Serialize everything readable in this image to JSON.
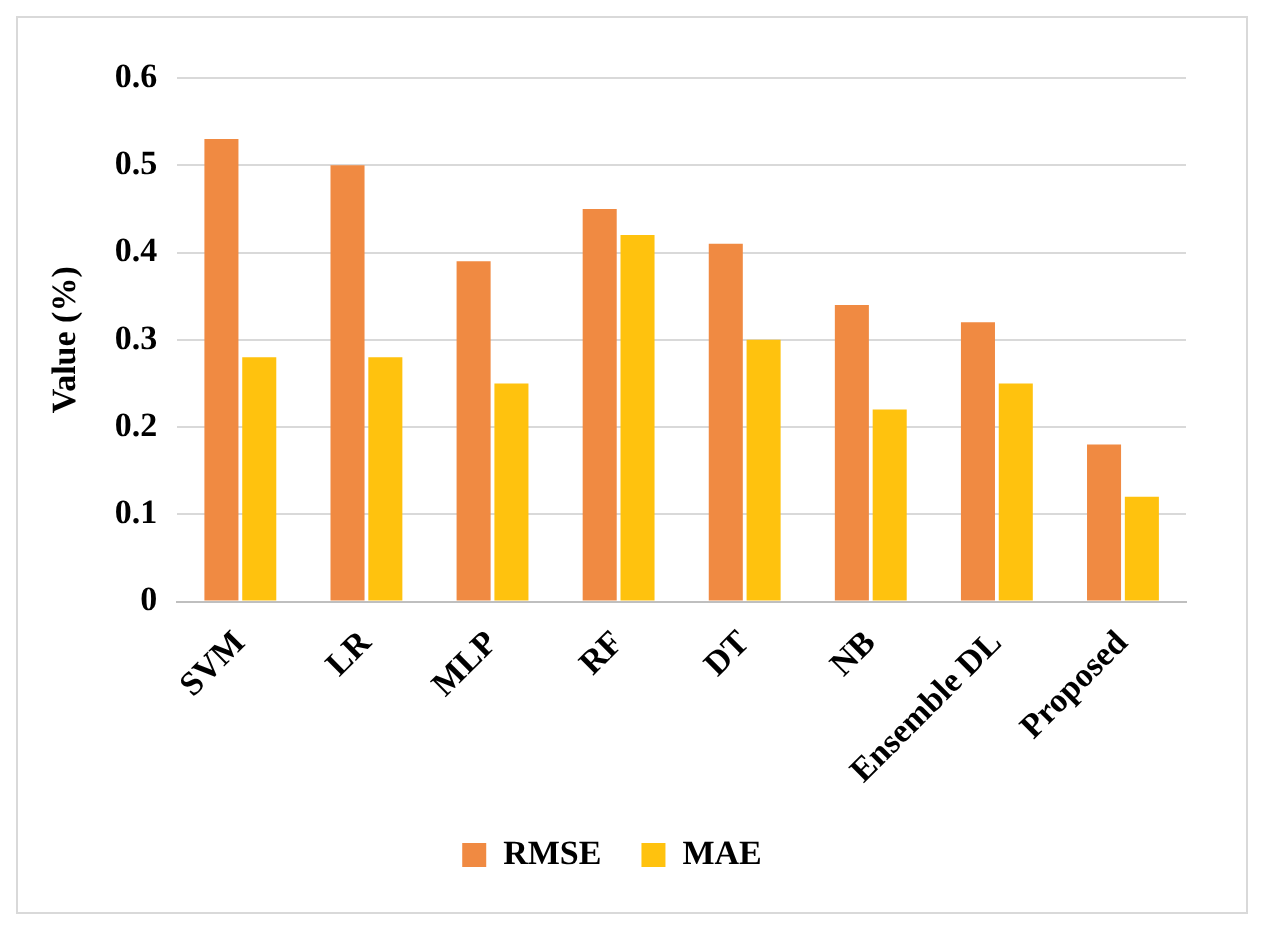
{
  "chart_data": {
    "type": "bar",
    "ylabel": "Value (%)",
    "categories": [
      "SVM",
      "LR",
      "MLP",
      "RF",
      "DT",
      "NB",
      "Ensemble DL",
      "Proposed"
    ],
    "series": [
      {
        "name": "RMSE",
        "color": "#f08a42",
        "values": [
          0.53,
          0.5,
          0.39,
          0.45,
          0.41,
          0.34,
          0.32,
          0.18
        ]
      },
      {
        "name": "MAE",
        "color": "#ffc20e",
        "values": [
          0.28,
          0.28,
          0.25,
          0.42,
          0.3,
          0.22,
          0.25,
          0.12
        ]
      }
    ],
    "ylim": [
      0,
      0.6
    ],
    "yticks": [
      {
        "value": 0,
        "label": "0"
      },
      0.1,
      0.2,
      0.3,
      0.4,
      0.5,
      0.6
    ],
    "grid": "y",
    "legend": "bottom"
  }
}
